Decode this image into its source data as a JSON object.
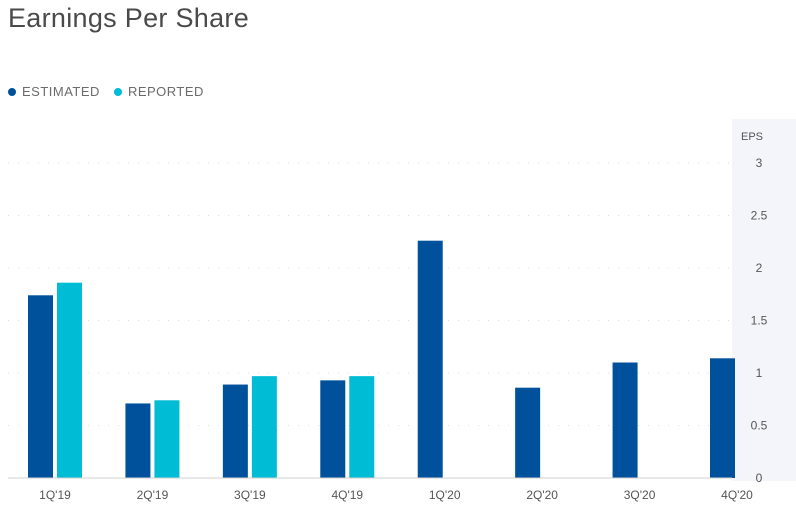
{
  "page": {
    "title": "Earnings Per Share"
  },
  "legend": {
    "items": [
      {
        "label": "ESTIMATED",
        "color": "#00519c"
      },
      {
        "label": "REPORTED",
        "color": "#00bcd4"
      }
    ]
  },
  "chart_data": {
    "type": "bar",
    "title": "Earnings Per Share",
    "ylabel": "EPS",
    "xlabel": "",
    "categories": [
      "1Q'19",
      "2Q'19",
      "3Q'19",
      "4Q'19",
      "1Q'20",
      "2Q'20",
      "3Q'20",
      "4Q'20"
    ],
    "series": [
      {
        "name": "ESTIMATED",
        "color": "#00519c",
        "values": [
          1.74,
          0.71,
          0.89,
          0.93,
          2.26,
          0.86,
          1.1,
          1.14
        ]
      },
      {
        "name": "REPORTED",
        "color": "#00bcd4",
        "values": [
          1.86,
          0.74,
          0.97,
          0.97,
          null,
          null,
          null,
          null
        ]
      }
    ],
    "ylim": [
      0,
      3
    ],
    "yticks": [
      "0",
      "0.5",
      "1",
      "1.5",
      "2",
      "2.5",
      "3"
    ],
    "ytick_values": [
      0,
      0.5,
      1,
      1.5,
      2,
      2.5,
      3
    ],
    "grid": true,
    "yaxis_position": "right",
    "legend_position": "top-left"
  }
}
